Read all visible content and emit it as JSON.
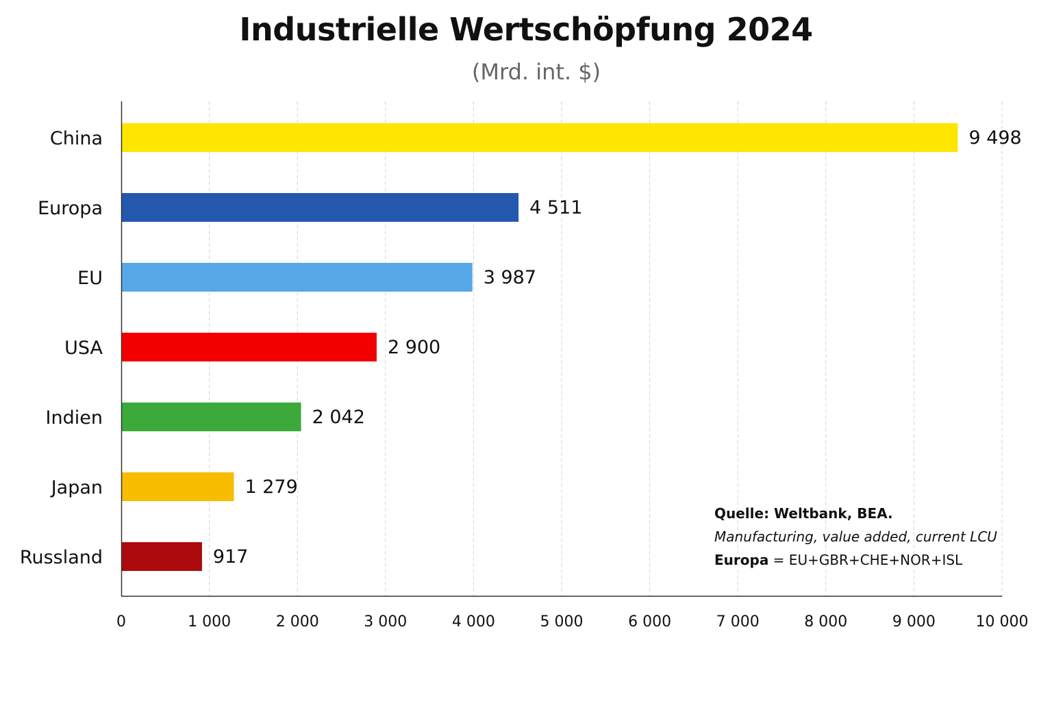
{
  "chart_data": {
    "type": "bar",
    "orientation": "horizontal",
    "title": "Industrielle Wertschöpfung 2024",
    "subtitle": "(Mrd. int. $)",
    "xlabel": "",
    "ylabel": "",
    "categories": [
      "China",
      "Europa",
      "EU",
      "USA",
      "Indien",
      "Japan",
      "Russland"
    ],
    "values": [
      9498,
      4511,
      3987,
      2900,
      2042,
      1279,
      917
    ],
    "value_labels": [
      "9 498",
      "4 511",
      "3 987",
      "2 900",
      "2 042",
      "1 279",
      "917"
    ],
    "colors": [
      "#FFE600",
      "#2358AE",
      "#56A8E8",
      "#F20000",
      "#3BAA3A",
      "#F8BC00",
      "#AC0A0C"
    ],
    "xlim": [
      0,
      10000
    ],
    "xticks": [
      0,
      1000,
      2000,
      3000,
      4000,
      5000,
      6000,
      7000,
      8000,
      9000,
      10000
    ],
    "xtick_labels": [
      "0",
      "1 000",
      "2 000",
      "3 000",
      "4 000",
      "5 000",
      "6 000",
      "7 000",
      "8 000",
      "9 000",
      "10 000"
    ],
    "grid": "vertical-dashed",
    "legend": "none"
  },
  "notes": {
    "source": "Quelle: Weltbank, BEA.",
    "description": "Manufacturing, value added, current LCU",
    "europa_label": "Europa",
    "europa_definition": " = EU+GBR+CHE+NOR+ISL"
  }
}
